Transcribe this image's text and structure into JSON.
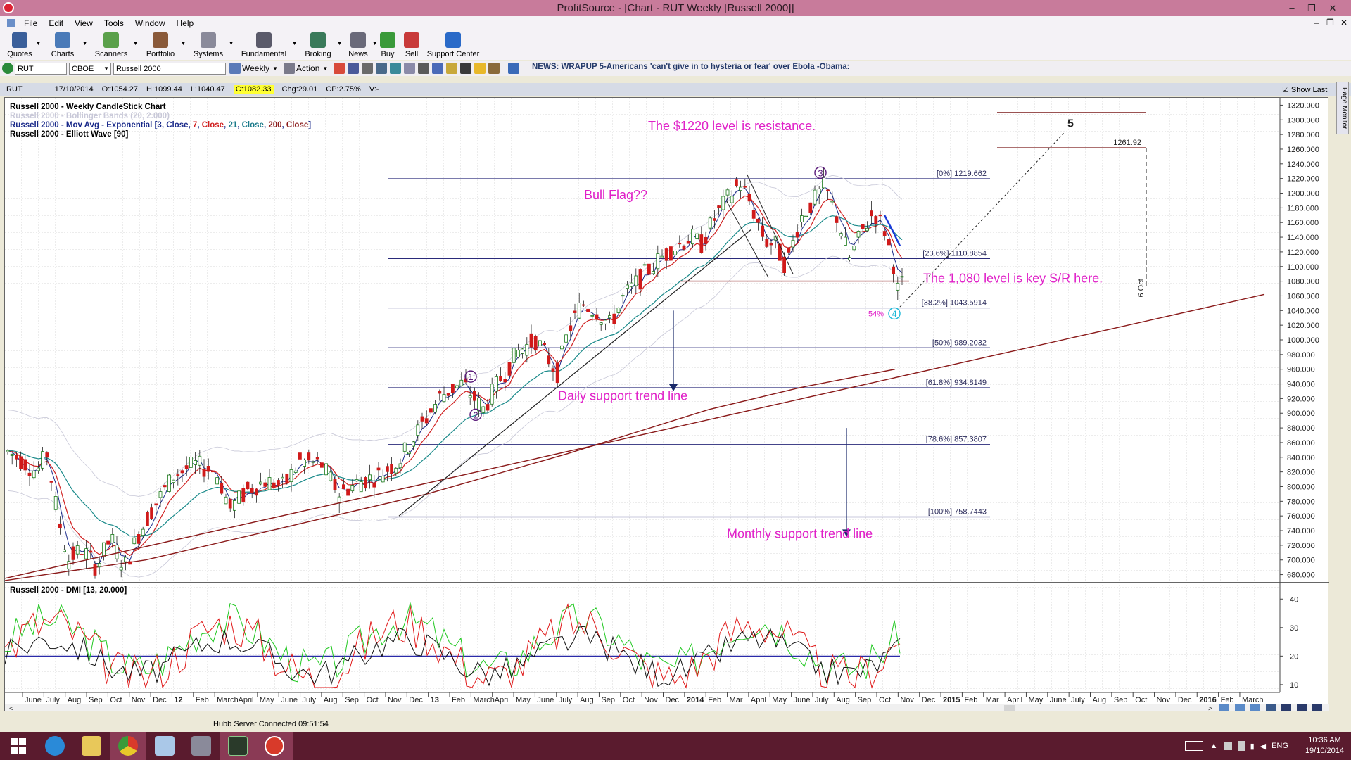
{
  "window": {
    "title": "ProfitSource - [Chart - RUT Weekly [Russell 2000]]"
  },
  "menu": {
    "items": [
      "File",
      "Edit",
      "View",
      "Tools",
      "Window",
      "Help"
    ]
  },
  "toolbar": {
    "buttons": [
      {
        "label": "Quotes",
        "color": "#3a5f9a"
      },
      {
        "label": "Charts",
        "color": "#4a7ab8"
      },
      {
        "label": "Scanners",
        "color": "#5aa04a"
      },
      {
        "label": "Portfolio",
        "color": "#8a5a3a"
      },
      {
        "label": "Systems",
        "color": "#8a8a9a"
      },
      {
        "label": "Fundamental",
        "color": "#5a5a6a"
      },
      {
        "label": "Broking",
        "color": "#3a7a5a"
      },
      {
        "label": "News",
        "color": "#6a6a7a"
      },
      {
        "label": "Buy",
        "color": "#3a9a3a"
      },
      {
        "label": "Sell",
        "color": "#c83a3a"
      },
      {
        "label": "Support Center",
        "color": "#2a6ac8"
      }
    ]
  },
  "symbolbar": {
    "symbol": "RUT",
    "exchange": "CBOE",
    "name": "Russell 2000",
    "period": "Weekly",
    "action": "Action",
    "news": "NEWS: WRAPUP 5-Americans 'can't give in to hysteria or fear' over Ebola -Obama:"
  },
  "quote": {
    "symbol": "RUT",
    "date": "17/10/2014",
    "open": "O:1054.27",
    "high": "H:1099.44",
    "low": "L:1040.47",
    "close": "C:1082.33",
    "change": "Chg:29.01",
    "changepct": "CP:2.75%",
    "volume": "V:-",
    "show_last": "Show Last"
  },
  "chart": {
    "legend": [
      {
        "text": "Russell 2000 - Weekly CandleStick Chart",
        "color": "#000000"
      },
      {
        "text": "Russell 2000 - Bollinger Bands (20, 2.000)",
        "color": "#c8c8d8"
      },
      {
        "text": "Russell 2000 - Elliott Wave [90]",
        "color": "#000000"
      }
    ],
    "mova_parts": [
      {
        "text": "Russell 2000 - Mov Avg - Exponential [",
        "color": "#1a2a8a"
      },
      {
        "text": "3",
        "color": "#1a2a8a"
      },
      {
        "text": ", ",
        "color": "#1a2a8a"
      },
      {
        "text": "Close",
        "color": "#1a2a8a"
      },
      {
        "text": ", ",
        "color": "#1a2a8a"
      },
      {
        "text": "7",
        "color": "#d02020"
      },
      {
        "text": ", ",
        "color": "#1a2a8a"
      },
      {
        "text": "Close",
        "color": "#d02020"
      },
      {
        "text": ", ",
        "color": "#1a2a8a"
      },
      {
        "text": "21",
        "color": "#1a7a8a"
      },
      {
        "text": ", ",
        "color": "#1a2a8a"
      },
      {
        "text": "Close",
        "color": "#1a7a8a"
      },
      {
        "text": ", ",
        "color": "#1a2a8a"
      },
      {
        "text": "200",
        "color": "#8a1a1a"
      },
      {
        "text": ", ",
        "color": "#1a2a8a"
      },
      {
        "text": "Close",
        "color": "#8a1a1a"
      },
      {
        "text": "]",
        "color": "#1a2a8a"
      }
    ],
    "y_axis": {
      "min": 670,
      "max": 1330,
      "ticks": [
        1320,
        1300,
        1280,
        1260,
        1240,
        1220,
        1200,
        1180,
        1160,
        1140,
        1120,
        1100,
        1080,
        1060,
        1040,
        1020,
        1000,
        980,
        960,
        940,
        920,
        900,
        880,
        860,
        840,
        820,
        800,
        780,
        760,
        740,
        720,
        700,
        680
      ]
    },
    "fib_levels": [
      {
        "label": "[0%] 1219.662",
        "value": 1219.662
      },
      {
        "label": "[23.6%] 1110.8854",
        "value": 1110.8854
      },
      {
        "label": "[38.2%] 1043.5914",
        "value": 1043.5914
      },
      {
        "label": "[50%] 989.2032",
        "value": 989.2032
      },
      {
        "label": "[61.8%] 934.8149",
        "value": 934.8149
      },
      {
        "label": "[78.6%] 857.3807",
        "value": 857.3807
      },
      {
        "label": "[100%] 758.7443",
        "value": 758.7443
      }
    ],
    "target_label": "1261.92",
    "target_value": 1261.92,
    "vertical_date": "6 Oct",
    "annotations": {
      "resistance": "The $1220 level is resistance.",
      "bull_flag": "Bull Flag??",
      "key_level": "The 1,080 level is key S/R here.",
      "daily_trend": "Daily support trend line",
      "monthly_trend": "Monthly support trend line",
      "pct54": "54%"
    },
    "waves": {
      "w1": "1",
      "w2": "2",
      "w3": "3",
      "w4": "4",
      "w5": "5"
    }
  },
  "dmi": {
    "title": "Russell 2000 - DMI [13, 20.000]",
    "ticks": [
      40,
      30,
      20,
      10
    ],
    "threshold": 20
  },
  "x_axis": {
    "labels": [
      "June",
      "July",
      "Aug",
      "Sep",
      "Oct",
      "Nov",
      "Dec",
      "12",
      "Feb",
      "March",
      "April",
      "May",
      "June",
      "July",
      "Aug",
      "Sep",
      "Oct",
      "Nov",
      "Dec",
      "13",
      "Feb",
      "March",
      "April",
      "May",
      "June",
      "July",
      "Aug",
      "Sep",
      "Oct",
      "Nov",
      "Dec",
      "2014",
      "Feb",
      "Mar",
      "April",
      "May",
      "June",
      "July",
      "Aug",
      "Sep",
      "Oct",
      "Nov",
      "Dec",
      "2015",
      "Feb",
      "Mar",
      "April",
      "May",
      "June",
      "July",
      "Aug",
      "Sep",
      "Oct",
      "Nov",
      "Dec",
      "2016",
      "Feb",
      "March"
    ],
    "bold": [
      "12",
      "13",
      "2014",
      "2015",
      "2016"
    ]
  },
  "status": {
    "text": "Hubb Server Connected 09:51:54"
  },
  "taskbar": {
    "time": "10:36 AM",
    "date": "19/10/2014",
    "lang": "ENG"
  }
}
